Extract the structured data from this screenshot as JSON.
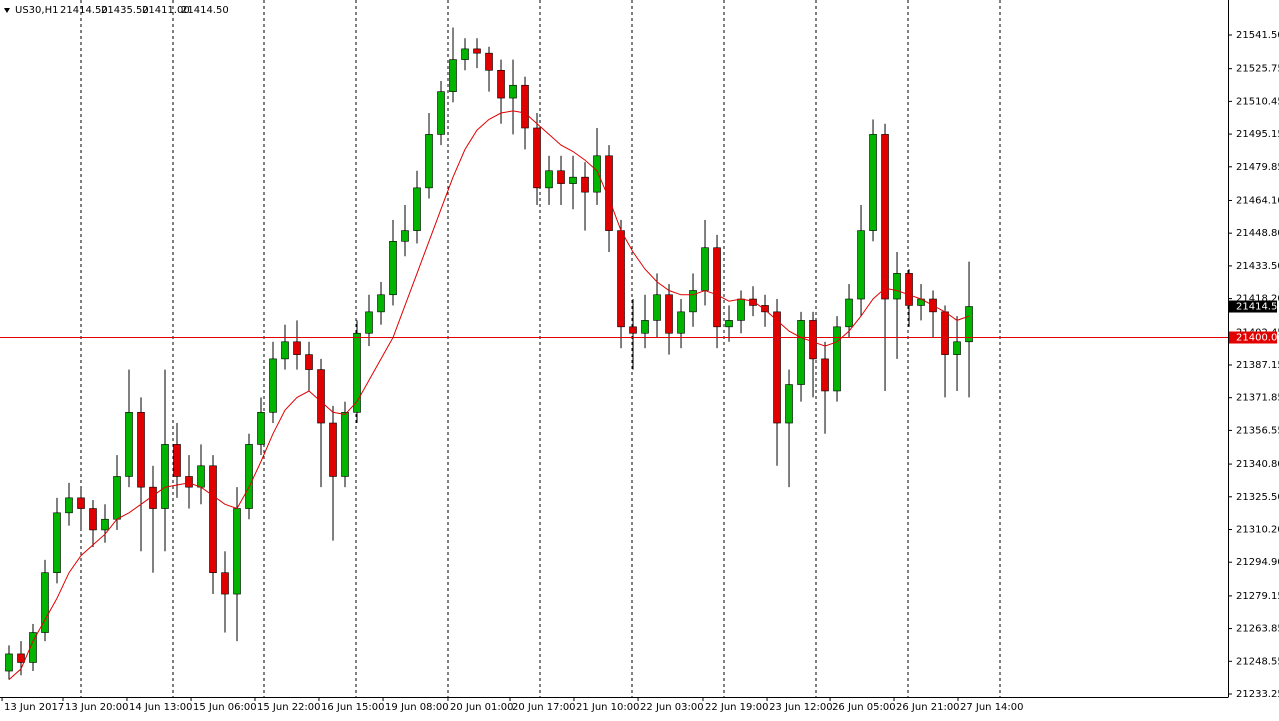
{
  "chart_data": {
    "type": "candlestick",
    "symbol": "US30,H1",
    "ohlc_labels": [
      "21414.50",
      "21435.50",
      "21411.00",
      "21414.50"
    ],
    "open": [
      21244,
      21252,
      21248,
      21262,
      21290,
      21318,
      21325,
      21320,
      21310,
      21315,
      21335,
      21365,
      21330,
      21320,
      21350,
      21335,
      21330,
      21340,
      21290,
      21280,
      21320,
      21350,
      21365,
      21390,
      21398,
      21392,
      21385,
      21360,
      21335,
      21365,
      21402,
      21412,
      21420,
      21445,
      21450,
      21470,
      21495,
      21515,
      21530,
      21535,
      21533,
      21525,
      21512,
      21518,
      21498,
      21470,
      21478,
      21472,
      21475,
      21468,
      21485,
      21450,
      21405,
      21402,
      21408,
      21420,
      21402,
      21412,
      21422,
      21442,
      21405,
      21408,
      21418,
      21415,
      21412,
      21360,
      21378,
      21408,
      21390,
      21375,
      21405,
      21418,
      21450,
      21495,
      21418,
      21430,
      21415,
      21418,
      21412,
      21392,
      21398
    ],
    "high": [
      21256,
      21258,
      21266,
      21296,
      21325,
      21332,
      21330,
      21324,
      21322,
      21345,
      21385,
      21372,
      21340,
      21385,
      21360,
      21345,
      21350,
      21345,
      21300,
      21330,
      21355,
      21372,
      21398,
      21406,
      21408,
      21398,
      21390,
      21368,
      21370,
      21408,
      21420,
      21426,
      21455,
      21462,
      21478,
      21505,
      21520,
      21545,
      21540,
      21540,
      21536,
      21530,
      21530,
      21522,
      21505,
      21485,
      21485,
      21485,
      21482,
      21498,
      21490,
      21455,
      21418,
      21420,
      21430,
      21425,
      21418,
      21430,
      21455,
      21448,
      21415,
      21422,
      21424,
      21420,
      21418,
      21385,
      21412,
      21412,
      21398,
      21410,
      21425,
      21462,
      21502,
      21500,
      21440,
      21432,
      21425,
      21422,
      21415,
      21410,
      21435.5
    ],
    "low": [
      21240,
      21242,
      21244,
      21258,
      21285,
      21312,
      21310,
      21302,
      21304,
      21310,
      21330,
      21300,
      21290,
      21300,
      21325,
      21320,
      21322,
      21280,
      21262,
      21258,
      21315,
      21345,
      21360,
      21385,
      21385,
      21375,
      21330,
      21305,
      21330,
      21360,
      21396,
      21406,
      21415,
      21438,
      21444,
      21465,
      21490,
      21510,
      21525,
      21526,
      21515,
      21500,
      21495,
      21488,
      21462,
      21462,
      21462,
      21460,
      21450,
      21462,
      21440,
      21395,
      21385,
      21395,
      21400,
      21392,
      21395,
      21405,
      21415,
      21395,
      21398,
      21402,
      21410,
      21405,
      21340,
      21330,
      21370,
      21372,
      21355,
      21370,
      21400,
      21410,
      21445,
      21375,
      21390,
      21405,
      21408,
      21400,
      21372,
      21375,
      21372
    ],
    "close": [
      21252,
      21248,
      21262,
      21290,
      21318,
      21325,
      21320,
      21310,
      21315,
      21335,
      21365,
      21330,
      21320,
      21350,
      21335,
      21330,
      21340,
      21290,
      21280,
      21320,
      21350,
      21365,
      21390,
      21398,
      21392,
      21385,
      21360,
      21335,
      21365,
      21402,
      21412,
      21420,
      21445,
      21450,
      21470,
      21495,
      21515,
      21530,
      21535,
      21533,
      21525,
      21512,
      21518,
      21498,
      21470,
      21478,
      21472,
      21475,
      21468,
      21485,
      21450,
      21405,
      21402,
      21408,
      21420,
      21402,
      21412,
      21422,
      21442,
      21405,
      21408,
      21418,
      21415,
      21412,
      21360,
      21378,
      21408,
      21390,
      21375,
      21405,
      21418,
      21450,
      21495,
      21418,
      21430,
      21415,
      21418,
      21412,
      21392,
      21398,
      21414.5
    ],
    "ma": [
      21240,
      21245,
      21258,
      21268,
      21278,
      21290,
      21298,
      21303,
      21308,
      21315,
      21318,
      21322,
      21326,
      21330,
      21331,
      21332,
      21330,
      21326,
      21322,
      21320,
      21330,
      21342,
      21355,
      21366,
      21372,
      21375,
      21370,
      21365,
      21364,
      21370,
      21380,
      21390,
      21400,
      21415,
      21430,
      21445,
      21460,
      21475,
      21488,
      21497,
      21502,
      21505,
      21506,
      21505,
      21500,
      21495,
      21490,
      21487,
      21483,
      21478,
      21465,
      21450,
      21440,
      21432,
      21426,
      21422,
      21420,
      21420,
      21422,
      21420,
      21417,
      21418,
      21417,
      21413,
      21408,
      21403,
      21400,
      21398,
      21396,
      21398,
      21403,
      21410,
      21418,
      21423,
      21422,
      21420,
      21418,
      21415,
      21412,
      21408,
      21410
    ],
    "up_color": "#00b400",
    "down_color": "#e00000",
    "ma_color": "#e00000",
    "xlim": [
      -0.75,
      101.58
    ],
    "ylim": [
      21231.85,
      21557.87
    ],
    "yticks": [
      {
        "value": 21541.5,
        "label": "21541.50"
      },
      {
        "value": 21525.75,
        "label": "21525.75"
      },
      {
        "value": 21510.45,
        "label": "21510.45"
      },
      {
        "value": 21495.15,
        "label": "21495.15"
      },
      {
        "value": 21479.85,
        "label": "21479.85"
      },
      {
        "value": 21464.1,
        "label": "21464.10"
      },
      {
        "value": 21448.8,
        "label": "21448.80"
      },
      {
        "value": 21433.5,
        "label": "21433.50"
      },
      {
        "value": 21418.2,
        "label": "21418.20"
      },
      {
        "value": 21402.45,
        "label": "21402.45"
      },
      {
        "value": 21387.15,
        "label": "21387.15"
      },
      {
        "value": 21371.85,
        "label": "21371.85"
      },
      {
        "value": 21356.55,
        "label": "21356.55"
      },
      {
        "value": 21340.8,
        "label": "21340.80"
      },
      {
        "value": 21325.5,
        "label": "21325.50"
      },
      {
        "value": 21310.2,
        "label": "21310.20"
      },
      {
        "value": 21294.9,
        "label": "21294.90"
      },
      {
        "value": 21279.15,
        "label": "21279.15"
      },
      {
        "value": 21263.85,
        "label": "21263.85"
      },
      {
        "value": 21248.55,
        "label": "21248.55"
      },
      {
        "value": 21233.25,
        "label": "21233.25"
      }
    ],
    "xticks": [
      {
        "value": -0.58,
        "label": "13 Jun 2017"
      },
      {
        "value": 4.5,
        "label": "13 Jun 20:00"
      },
      {
        "value": 9.83,
        "label": "14 Jun 13:00"
      },
      {
        "value": 15.17,
        "label": "15 Jun 06:00"
      },
      {
        "value": 20.5,
        "label": "15 Jun 22:00"
      },
      {
        "value": 25.83,
        "label": "16 Jun 15:00"
      },
      {
        "value": 31.17,
        "label": "19 Jun 08:00"
      },
      {
        "value": 36.58,
        "label": "20 Jun 01:00"
      },
      {
        "value": 41.75,
        "label": "20 Jun 17:00"
      },
      {
        "value": 47.08,
        "label": "21 Jun 10:00"
      },
      {
        "value": 52.42,
        "label": "22 Jun 03:00"
      },
      {
        "value": 57.83,
        "label": "22 Jun 19:00"
      },
      {
        "value": 63.17,
        "label": "23 Jun 12:00"
      },
      {
        "value": 68.42,
        "label": "26 Jun 05:00"
      },
      {
        "value": 73.75,
        "label": "26 Jun 21:00"
      },
      {
        "value": 79.08,
        "label": "27 Jun 14:00"
      }
    ],
    "hline": {
      "value": 21400,
      "label": "21400.00",
      "color": "#e00000"
    },
    "last_price": {
      "value": 21414.5,
      "label": "21414.50"
    }
  }
}
